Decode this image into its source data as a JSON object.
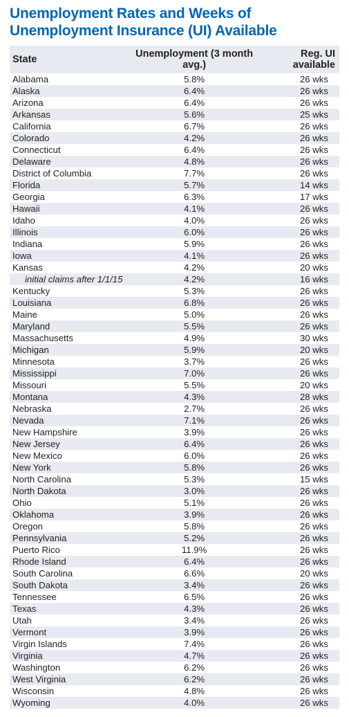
{
  "title": "Unemployment Rates and Weeks of Unemployment Insurance (UI) Available",
  "table": {
    "columns": {
      "state": "State",
      "unemployment": "Unemployment (3 month avg.)",
      "ui": "Reg. UI available"
    },
    "colors": {
      "title": "#0066b3",
      "stripe_bg": "#e7eaf0",
      "text": "#231f20"
    },
    "rows": [
      {
        "state": "Alabama",
        "unemployment": "5.8%",
        "ui": "26 wks"
      },
      {
        "state": "Alaska",
        "unemployment": "6.4%",
        "ui": "26 wks"
      },
      {
        "state": "Arizona",
        "unemployment": "6.4%",
        "ui": "26 wks"
      },
      {
        "state": "Arkansas",
        "unemployment": "5.6%",
        "ui": "25 wks"
      },
      {
        "state": "California",
        "unemployment": "6.7%",
        "ui": "26 wks"
      },
      {
        "state": "Colorado",
        "unemployment": "4.2%",
        "ui": "26 wks"
      },
      {
        "state": "Connecticut",
        "unemployment": "6.4%",
        "ui": "26 wks"
      },
      {
        "state": "Delaware",
        "unemployment": "4.8%",
        "ui": "26 wks"
      },
      {
        "state": "District of Columbia",
        "unemployment": "7.7%",
        "ui": "26 wks"
      },
      {
        "state": "Florida",
        "unemployment": "5.7%",
        "ui": "14 wks"
      },
      {
        "state": "Georgia",
        "unemployment": "6.3%",
        "ui": "17 wks"
      },
      {
        "state": "Hawaii",
        "unemployment": "4.1%",
        "ui": "26 wks"
      },
      {
        "state": "Idaho",
        "unemployment": "4.0%",
        "ui": "26 wks"
      },
      {
        "state": "Illinois",
        "unemployment": "6.0%",
        "ui": "26 wks"
      },
      {
        "state": "Indiana",
        "unemployment": "5.9%",
        "ui": "26 wks"
      },
      {
        "state": "Iowa",
        "unemployment": "4.1%",
        "ui": "26 wks"
      },
      {
        "state": "Kansas",
        "unemployment": "4.2%",
        "ui": "20 wks"
      },
      {
        "state": "initial claims after 1/1/15",
        "unemployment": "4.2%",
        "ui": "16 wks",
        "indent": true
      },
      {
        "state": "Kentucky",
        "unemployment": "5.3%",
        "ui": "26 wks"
      },
      {
        "state": "Louisiana",
        "unemployment": "6.8%",
        "ui": "26 wks"
      },
      {
        "state": "Maine",
        "unemployment": "5.0%",
        "ui": "26 wks"
      },
      {
        "state": "Maryland",
        "unemployment": "5.5%",
        "ui": "26 wks"
      },
      {
        "state": "Massachusetts",
        "unemployment": "4.9%",
        "ui": "30 wks"
      },
      {
        "state": "Michigan",
        "unemployment": "5.9%",
        "ui": "20 wks"
      },
      {
        "state": "Minnesota",
        "unemployment": "3.7%",
        "ui": "26 wks"
      },
      {
        "state": "Mississippi",
        "unemployment": "7.0%",
        "ui": "26 wks"
      },
      {
        "state": "Missouri",
        "unemployment": "5.5%",
        "ui": "20 wks"
      },
      {
        "state": "Montana",
        "unemployment": "4.3%",
        "ui": "28 wks"
      },
      {
        "state": "Nebraska",
        "unemployment": "2.7%",
        "ui": "26 wks"
      },
      {
        "state": "Nevada",
        "unemployment": "7.1%",
        "ui": "26 wks"
      },
      {
        "state": "New Hampshire",
        "unemployment": "3.9%",
        "ui": "26 wks"
      },
      {
        "state": "New Jersey",
        "unemployment": "6.4%",
        "ui": "26 wks"
      },
      {
        "state": "New Mexico",
        "unemployment": "6.0%",
        "ui": "26 wks"
      },
      {
        "state": "New York",
        "unemployment": "5.8%",
        "ui": "26 wks"
      },
      {
        "state": "North Carolina",
        "unemployment": "5.3%",
        "ui": "15 wks"
      },
      {
        "state": "North Dakota",
        "unemployment": "3.0%",
        "ui": "26 wks"
      },
      {
        "state": "Ohio",
        "unemployment": "5.1%",
        "ui": "26 wks"
      },
      {
        "state": "Oklahoma",
        "unemployment": "3.9%",
        "ui": "26 wks"
      },
      {
        "state": "Oregon",
        "unemployment": "5.8%",
        "ui": "26 wks"
      },
      {
        "state": "Pennsylvania",
        "unemployment": "5.2%",
        "ui": "26 wks"
      },
      {
        "state": "Puerto Rico",
        "unemployment": "11.9%",
        "ui": "26 wks"
      },
      {
        "state": "Rhode Island",
        "unemployment": "6.4%",
        "ui": "26 wks"
      },
      {
        "state": "South Carolina",
        "unemployment": "6.6%",
        "ui": "20 wks"
      },
      {
        "state": "South Dakota",
        "unemployment": "3.4%",
        "ui": "26 wks"
      },
      {
        "state": "Tennessee",
        "unemployment": "6.5%",
        "ui": "26 wks"
      },
      {
        "state": "Texas",
        "unemployment": "4.3%",
        "ui": "26 wks"
      },
      {
        "state": "Utah",
        "unemployment": "3.4%",
        "ui": "26 wks"
      },
      {
        "state": "Vermont",
        "unemployment": "3.9%",
        "ui": "26 wks"
      },
      {
        "state": "Virgin Islands",
        "unemployment": "7.4%",
        "ui": "26 wks"
      },
      {
        "state": "Virginia",
        "unemployment": "4.7%",
        "ui": "26 wks"
      },
      {
        "state": "Washington",
        "unemployment": "6.2%",
        "ui": "26 wks"
      },
      {
        "state": "West Virginia",
        "unemployment": "6.2%",
        "ui": "26 wks"
      },
      {
        "state": "Wisconsin",
        "unemployment": "4.8%",
        "ui": "26 wks"
      },
      {
        "state": "Wyoming",
        "unemployment": "4.0%",
        "ui": "26 wks"
      }
    ]
  }
}
